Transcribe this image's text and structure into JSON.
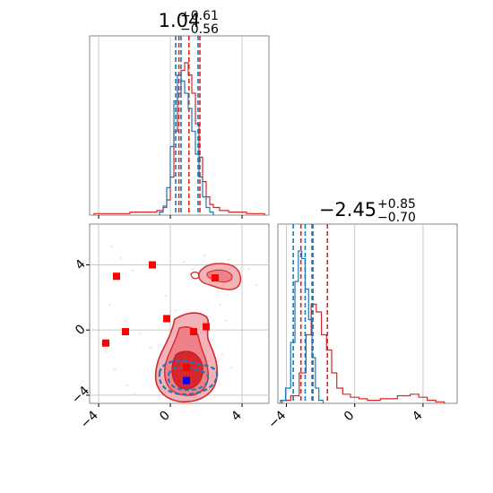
{
  "chart_data": {
    "type": "corner",
    "grid": true,
    "colors": {
      "series_a": "#d62728",
      "series_b": "#1f77b4",
      "marker_extra": "#0000ff"
    },
    "series": [
      {
        "color": "#d62728"
      },
      {
        "color": "#1f77b4"
      }
    ],
    "panels": [
      {
        "position": "top-left",
        "type": "histogram",
        "title": {
          "value": "1.04",
          "upper": "+0.61",
          "lower": "−0.56"
        },
        "xlim": [
          -4.5,
          5.5
        ],
        "series": [
          {
            "color": "#d62728",
            "x": [
              -4.0,
              -3.5,
              -3.0,
              -2.5,
              -2.0,
              -1.5,
              -1.0,
              -0.5,
              -0.3,
              -0.1,
              0.1,
              0.3,
              0.5,
              0.7,
              0.9,
              1.1,
              1.3,
              1.5,
              1.7,
              1.9,
              2.1,
              2.3,
              2.5,
              3.0,
              3.5,
              4.0,
              4.5,
              5.0
            ],
            "density": [
              0.01,
              0.01,
              0.01,
              0.01,
              0.02,
              0.02,
              0.02,
              0.03,
              0.05,
              0.1,
              0.25,
              0.55,
              0.8,
              0.95,
              1.0,
              0.92,
              0.8,
              0.6,
              0.38,
              0.22,
              0.12,
              0.07,
              0.05,
              0.03,
              0.02,
              0.02,
              0.01,
              0.01
            ],
            "quantiles": [
              0.48,
              1.04,
              1.65
            ]
          },
          {
            "color": "#1f77b4",
            "x": [
              -0.5,
              -0.3,
              -0.1,
              0.1,
              0.3,
              0.5,
              0.7,
              0.9,
              1.1,
              1.3,
              1.5,
              1.7,
              1.9,
              2.1,
              2.3
            ],
            "density": [
              0.02,
              0.06,
              0.18,
              0.45,
              0.75,
              0.92,
              0.88,
              0.8,
              0.7,
              0.55,
              0.4,
              0.25,
              0.12,
              0.05,
              0.02
            ],
            "quantiles": [
              0.3,
              0.6,
              1.55
            ]
          }
        ],
        "xticks": [
          -4,
          0,
          4
        ],
        "show_tick_labels": false
      },
      {
        "position": "bottom-left",
        "type": "2d-contour",
        "xlim": [
          -4.5,
          5.5
        ],
        "ylim": [
          -4.5,
          6.5
        ],
        "xticks": [
          -4,
          0,
          4
        ],
        "yticks": [
          -4,
          0,
          4
        ],
        "xtick_labels": [
          "−4",
          "0",
          "4"
        ],
        "ytick_labels": [
          "−4",
          "0",
          "4"
        ],
        "markers": [
          {
            "x": -3.0,
            "y": 3.3,
            "color": "#ff0000"
          },
          {
            "x": -1.0,
            "y": 4.0,
            "color": "#ff0000"
          },
          {
            "x": -0.2,
            "y": 0.7,
            "color": "#ff0000"
          },
          {
            "x": -3.6,
            "y": -0.8,
            "color": "#ff0000"
          },
          {
            "x": -2.5,
            "y": -0.1,
            "color": "#ff0000"
          },
          {
            "x": 2.5,
            "y": 3.2,
            "color": "#ff0000"
          },
          {
            "x": 1.3,
            "y": -0.1,
            "color": "#ff0000"
          },
          {
            "x": 2.0,
            "y": 0.2,
            "color": "#ff0000"
          },
          {
            "x": 0.9,
            "y": -2.3,
            "color": "#ff0000"
          },
          {
            "x": 0.9,
            "y": -3.1,
            "color": "#0000ff"
          }
        ]
      },
      {
        "position": "bottom-right",
        "type": "histogram",
        "title": {
          "value": "−2.45",
          "upper": "+0.85",
          "lower": "−0.70"
        },
        "xlim": [
          -4.5,
          6.0
        ],
        "xticks": [
          -4,
          0,
          4
        ],
        "xtick_labels": [
          "−4",
          "0",
          "4"
        ],
        "series": [
          {
            "color": "#d62728",
            "x": [
              -4.0,
              -3.5,
              -3.0,
              -2.7,
              -2.4,
              -2.1,
              -1.8,
              -1.5,
              -1.2,
              -0.9,
              -0.5,
              0.0,
              0.5,
              1.0,
              2.0,
              3.0,
              3.5,
              4.0,
              4.5,
              5.0
            ],
            "density": [
              0.02,
              0.05,
              0.2,
              0.45,
              0.65,
              0.6,
              0.45,
              0.35,
              0.2,
              0.1,
              0.06,
              0.04,
              0.03,
              0.02,
              0.03,
              0.05,
              0.06,
              0.04,
              0.02,
              0.01
            ],
            "quantiles": [
              -3.15,
              -2.45,
              -1.6
            ]
          },
          {
            "color": "#1f77b4",
            "x": [
              -4.2,
              -3.9,
              -3.6,
              -3.4,
              -3.2,
              -3.0,
              -2.8,
              -2.6,
              -2.4,
              -2.2,
              -2.0
            ],
            "density": [
              0.02,
              0.1,
              0.4,
              0.8,
              1.0,
              0.95,
              0.75,
              0.55,
              0.3,
              0.1,
              0.02
            ],
            "quantiles": [
              -3.6,
              -2.9,
              -2.5
            ]
          }
        ]
      }
    ]
  }
}
